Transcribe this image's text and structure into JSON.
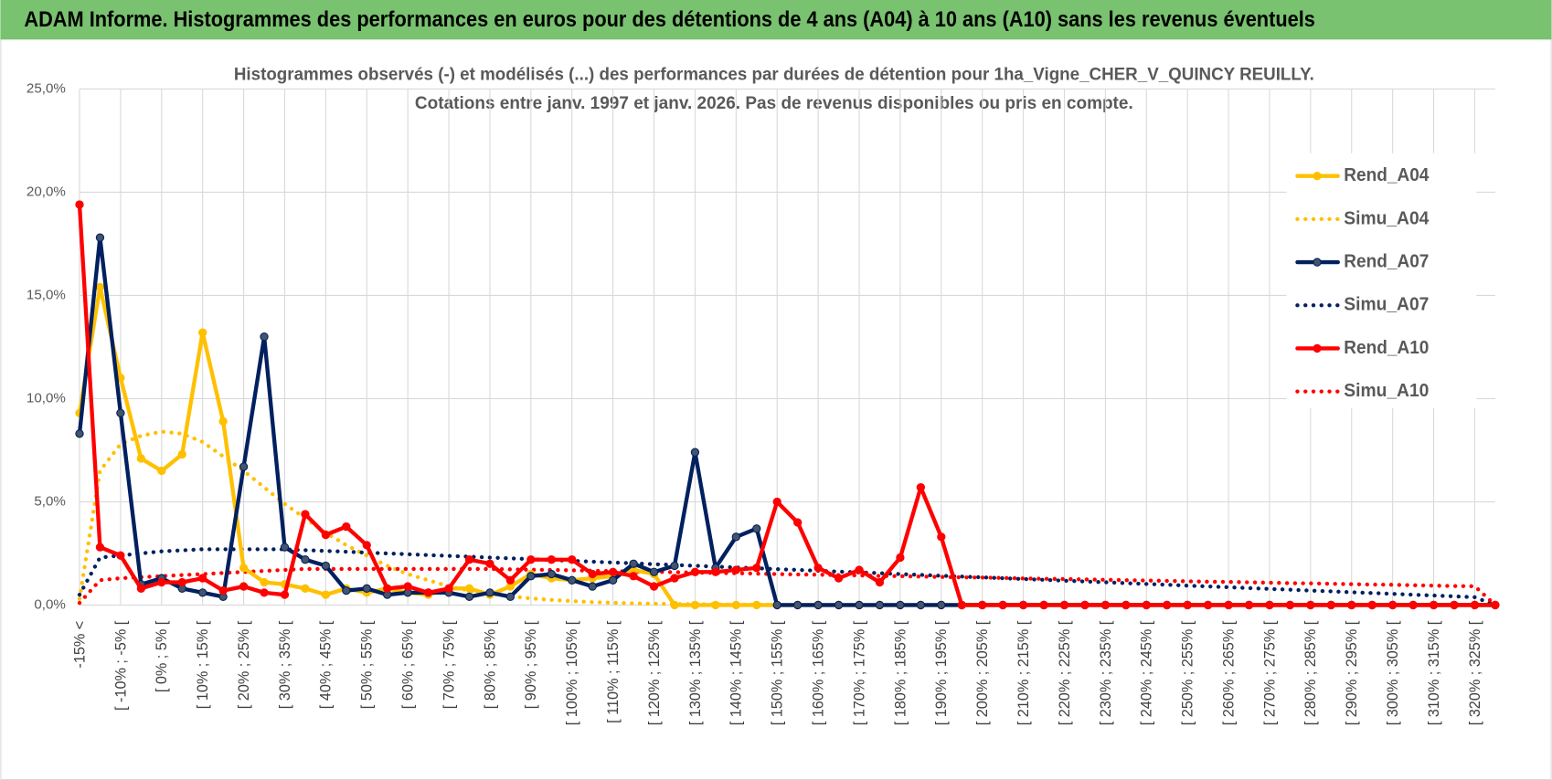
{
  "header": {
    "title": "ADAM Informe. Histogrammes des performances en euros pour des détentions de 4 ans (A04) à 10 ans (A10) sans les revenus éventuels"
  },
  "chart_data": {
    "type": "line",
    "title": "Histogrammes observés (-) et modélisés (...) des performances par durées de détention pour 1ha_Vigne_CHER_V_QUINCY REUILLY.",
    "subtitle": "Cotations entre janv. 1997 et janv. 2026. Pas de revenus disponibles ou pris en compte.",
    "categories": [
      "-15% <",
      null,
      "[ -10% ; -5% [",
      null,
      "[ 0% ; 5% [",
      null,
      "[ 10% ; 15% [",
      null,
      "[ 20% ; 25% [",
      null,
      "[ 30% ; 35% [",
      null,
      "[ 40% ; 45% [",
      null,
      "[ 50% ; 55% [",
      null,
      "[ 60% ; 65% [",
      null,
      "[ 70% ; 75% [",
      null,
      "[ 80% ; 85% [",
      null,
      "[ 90% ; 95% [",
      null,
      "[ 100% ; 105% [",
      null,
      "[ 110% ; 115% [",
      null,
      "[ 120% ; 125% [",
      null,
      "[ 130% ; 135% [",
      null,
      "[ 140% ; 145% [",
      null,
      "[ 150% ; 155% [",
      null,
      "[ 160% ; 165% [",
      null,
      "[ 170% ; 175% [",
      null,
      "[ 180% ; 185% [",
      null,
      "[ 190% ; 195% [",
      null,
      "[ 200% ; 205% [",
      null,
      "[ 210% ; 215% [",
      null,
      "[ 220% ; 225% [",
      null,
      "[ 230% ; 235% [",
      null,
      "[ 240% ; 245% [",
      null,
      "[ 250% ; 255% [",
      null,
      "[ 260% ; 265% [",
      null,
      "[ 270% ; 275% [",
      null,
      "[ 280% ; 285% [",
      null,
      "[ 290% ; 295% [",
      null,
      "[ 300% ; 305% [",
      null,
      "[ 310% ; 315% [",
      null,
      "[ 320% ; 325% [",
      null
    ],
    "ylim": [
      0,
      25
    ],
    "yticks": [
      {
        "value": 0,
        "label": "0,0%"
      },
      {
        "value": 5,
        "label": "5,0%"
      },
      {
        "value": 10,
        "label": "10,0%"
      },
      {
        "value": 15,
        "label": "15,0%"
      },
      {
        "value": 20,
        "label": "20,0%"
      },
      {
        "value": 25,
        "label": "25,0%"
      }
    ],
    "grid": true,
    "legend": "right",
    "series": [
      {
        "name": "Rend_A04",
        "color": "#FFC000",
        "style": "solid",
        "values": [
          9.3,
          15.4,
          11.0,
          7.1,
          6.5,
          7.3,
          13.2,
          8.9,
          1.8,
          1.1,
          1.0,
          0.8,
          0.5,
          0.8,
          0.6,
          0.8,
          0.6,
          0.5,
          0.8,
          0.8,
          0.5,
          0.9,
          1.5,
          1.3,
          1.2,
          1.3,
          1.4,
          1.7,
          1.5,
          0,
          0,
          0,
          0,
          0,
          0,
          0,
          0,
          0,
          0,
          0,
          0,
          0,
          0,
          0,
          0,
          0,
          0,
          0,
          0,
          0,
          0,
          0,
          0,
          0,
          0,
          0,
          0,
          0,
          0,
          0,
          0,
          0,
          0,
          0,
          0,
          0,
          0,
          0,
          0,
          0
        ]
      },
      {
        "name": "Simu_A04",
        "color": "#FFC000",
        "style": "dotted",
        "values": [
          0.3,
          6.5,
          7.8,
          8.2,
          8.4,
          8.3,
          7.9,
          7.2,
          6.5,
          5.7,
          4.9,
          4.2,
          3.5,
          2.9,
          2.4,
          1.9,
          1.5,
          1.2,
          0.9,
          0.7,
          0.55,
          0.42,
          0.32,
          0.25,
          0.19,
          0.14,
          0.11,
          0.08,
          0.06,
          0.05,
          0.04,
          0.03,
          0.02,
          0.02,
          0.01,
          0,
          0,
          0,
          0,
          0,
          0,
          0,
          0,
          0,
          0,
          0,
          0,
          0,
          0,
          0,
          0,
          0,
          0,
          0,
          0,
          0,
          0,
          0,
          0,
          0,
          0,
          0,
          0,
          0,
          0,
          0,
          0,
          0,
          0,
          0
        ]
      },
      {
        "name": "Rend_A07",
        "color": "#002060",
        "style": "solid",
        "values": [
          8.3,
          17.8,
          9.3,
          1.0,
          1.3,
          0.8,
          0.6,
          0.4,
          6.7,
          13.0,
          2.8,
          2.2,
          1.9,
          0.7,
          0.8,
          0.5,
          0.6,
          0.6,
          0.6,
          0.4,
          0.6,
          0.4,
          1.4,
          1.5,
          1.2,
          0.9,
          1.2,
          2.0,
          1.6,
          1.9,
          7.4,
          1.8,
          3.3,
          3.7,
          0,
          0,
          0,
          0,
          0,
          0,
          0,
          0,
          0,
          0,
          0,
          0,
          0,
          0,
          0,
          0,
          0,
          0,
          0,
          0,
          0,
          0,
          0,
          0,
          0,
          0,
          0,
          0,
          0,
          0,
          0,
          0,
          0,
          0,
          0,
          0
        ]
      },
      {
        "name": "Simu_A07",
        "color": "#002060",
        "style": "dotted",
        "values": [
          0.5,
          2.3,
          2.4,
          2.5,
          2.6,
          2.65,
          2.7,
          2.7,
          2.7,
          2.7,
          2.7,
          2.66,
          2.62,
          2.58,
          2.54,
          2.5,
          2.46,
          2.42,
          2.38,
          2.34,
          2.3,
          2.26,
          2.22,
          2.18,
          2.14,
          2.1,
          2.06,
          2.02,
          1.98,
          1.94,
          1.9,
          1.86,
          1.82,
          1.78,
          1.74,
          1.7,
          1.66,
          1.62,
          1.58,
          1.54,
          1.5,
          1.46,
          1.42,
          1.38,
          1.34,
          1.3,
          1.26,
          1.22,
          1.18,
          1.14,
          1.1,
          1.06,
          1.02,
          0.98,
          0.94,
          0.9,
          0.86,
          0.82,
          0.78,
          0.74,
          0.7,
          0.66,
          0.62,
          0.58,
          0.54,
          0.5,
          0.46,
          0.42,
          0.38,
          0
        ]
      },
      {
        "name": "Rend_A10",
        "color": "#FF0000",
        "style": "solid",
        "values": [
          19.4,
          2.8,
          2.4,
          0.8,
          1.1,
          1.1,
          1.3,
          0.7,
          0.9,
          0.6,
          0.5,
          4.4,
          3.4,
          3.8,
          2.9,
          0.8,
          0.9,
          0.6,
          0.8,
          2.2,
          2.0,
          1.2,
          2.2,
          2.2,
          2.2,
          1.5,
          1.6,
          1.4,
          0.9,
          1.3,
          1.6,
          1.6,
          1.7,
          1.8,
          5.0,
          4.0,
          1.8,
          1.3,
          1.7,
          1.1,
          2.3,
          5.7,
          3.3,
          0,
          0,
          0,
          0,
          0,
          0,
          0,
          0,
          0,
          0,
          0,
          0,
          0,
          0,
          0,
          0,
          0,
          0,
          0,
          0,
          0,
          0,
          0,
          0,
          0,
          0,
          0
        ]
      },
      {
        "name": "Simu_A10",
        "color": "#FF0000",
        "style": "dotted",
        "values": [
          0.1,
          1.2,
          1.3,
          1.35,
          1.4,
          1.45,
          1.5,
          1.55,
          1.6,
          1.65,
          1.7,
          1.75,
          1.75,
          1.75,
          1.75,
          1.75,
          1.75,
          1.75,
          1.75,
          1.75,
          1.75,
          1.73,
          1.71,
          1.7,
          1.68,
          1.66,
          1.64,
          1.62,
          1.61,
          1.59,
          1.57,
          1.55,
          1.54,
          1.52,
          1.5,
          1.48,
          1.47,
          1.45,
          1.43,
          1.41,
          1.4,
          1.38,
          1.36,
          1.34,
          1.33,
          1.31,
          1.29,
          1.27,
          1.26,
          1.24,
          1.22,
          1.2,
          1.19,
          1.17,
          1.15,
          1.13,
          1.12,
          1.1,
          1.08,
          1.06,
          1.05,
          1.03,
          1.01,
          0.99,
          0.98,
          0.96,
          0.94,
          0.92,
          0.91,
          0
        ]
      }
    ]
  }
}
